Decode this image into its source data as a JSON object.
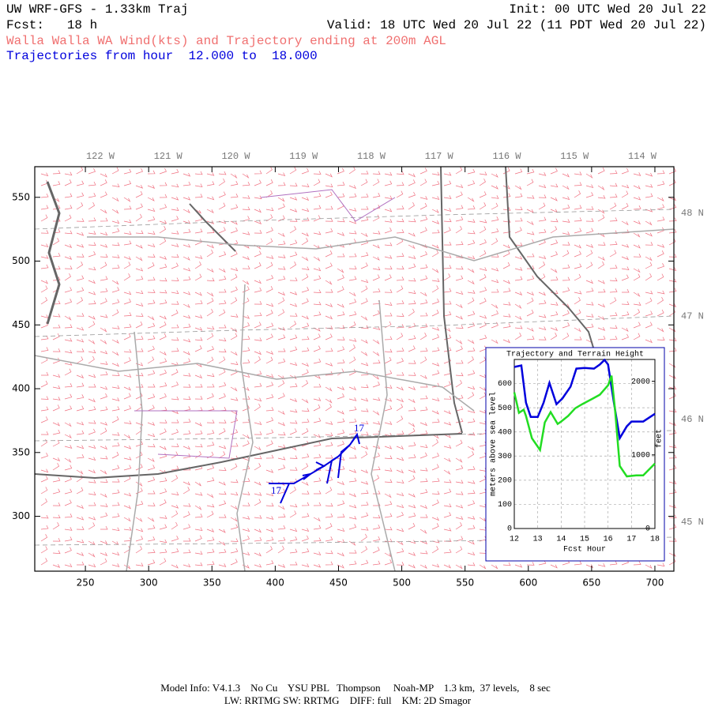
{
  "header": {
    "line1_left": "UW WRF-GFS - 1.33km Traj",
    "line1_right": "Init: 00 UTC Wed 20 Jul 22",
    "line2_left": "Fcst:   18 h",
    "line2_right": "Valid: 18 UTC Wed 20 Jul 22 (11 PDT Wed 20 Jul 22)",
    "line3": "Walla Walla WA Wind(kts) and Trajectory ending at 200m AGL",
    "line4": "Trajectories from hour  12.000 to  18.000"
  },
  "map": {
    "xlim": [
      210,
      715
    ],
    "ylim": [
      257,
      574
    ],
    "xticks": [
      250,
      300,
      350,
      400,
      450,
      500,
      550,
      600,
      650,
      700
    ],
    "yticks": [
      300,
      350,
      400,
      450,
      500,
      550
    ],
    "lon_labels": [
      "122 W",
      "121 W",
      "120 W",
      "119 W",
      "118 W",
      "117 W",
      "116 W",
      "115 W",
      "114 W"
    ],
    "lat_labels": [
      "48 N",
      "47 N",
      "46 N",
      "45 N"
    ],
    "trajectory_start_label": "17",
    "trajectory_end_label": "17"
  },
  "chart_data": {
    "type": "line",
    "title": "Trajectory and Terrain Height",
    "x_label": "Fcst Hour",
    "y_label": "meters above sea level",
    "y2_label": "feet",
    "xlim": [
      12,
      18
    ],
    "xticks": [
      12,
      13,
      14,
      15,
      16,
      17,
      18
    ],
    "ylim": [
      0,
      700
    ],
    "yticks": [
      0,
      100,
      200,
      300,
      400,
      500,
      600
    ],
    "y2lim": [
      0,
      2297
    ],
    "y2ticks": [
      0,
      1000,
      2000
    ],
    "grid": true,
    "series": [
      {
        "color": "#0000dd",
        "x": [
          12.0,
          12.3,
          12.5,
          12.7,
          13.0,
          13.25,
          13.5,
          13.8,
          14.05,
          14.4,
          14.65,
          15.0,
          15.4,
          15.65,
          15.85,
          16.0,
          16.25,
          16.5,
          16.8,
          17.0,
          17.5,
          18.0
        ],
        "values": [
          669,
          675,
          521,
          462,
          462,
          521,
          603,
          515,
          538,
          587,
          662,
          665,
          662,
          679,
          698,
          679,
          521,
          374,
          423,
          443,
          443,
          475
        ]
      },
      {
        "color": "#22dd22",
        "x": [
          12.0,
          12.2,
          12.4,
          12.5,
          12.75,
          13.1,
          13.3,
          13.55,
          13.85,
          14.0,
          14.3,
          14.6,
          14.9,
          15.35,
          15.65,
          16.0,
          16.15,
          16.3,
          16.5,
          16.8,
          17.2,
          17.5,
          18.0
        ],
        "values": [
          564,
          479,
          492,
          466,
          374,
          325,
          439,
          482,
          433,
          443,
          466,
          498,
          515,
          538,
          554,
          593,
          633,
          489,
          259,
          216,
          220,
          220,
          269
        ]
      }
    ]
  },
  "footer": {
    "line1": "Model Info: V4.1.3    No Cu    YSU PBL   Thompson     Noah-MP    1.3 km,  37 levels,    8 sec",
    "line2": "LW: RRTMG SW: RRTMG    DIFF: full    KM: 2D Smagor"
  }
}
